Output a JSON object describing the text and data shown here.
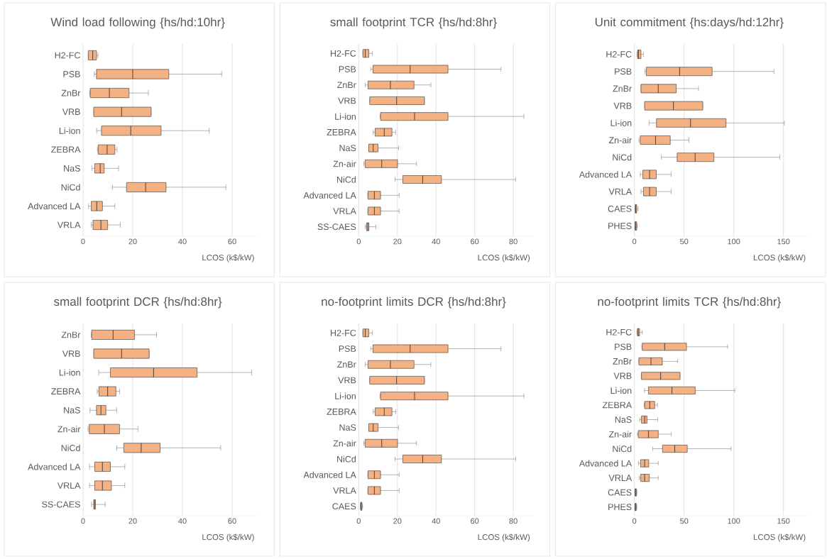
{
  "chart_data": [
    {
      "type": "box",
      "orientation": "horizontal",
      "title": "Wind load following {hs/hd:10hr}",
      "xlabel": "LCOS (k$/kW)",
      "color": "#f4b183",
      "grid": "x",
      "xlim": [
        0,
        70
      ],
      "xticks": [
        0,
        20,
        40,
        60
      ],
      "categories": [
        "H2-FC",
        "PSB",
        "ZnBr",
        "VRB",
        "Li-ion",
        "ZEBRA",
        "NaS",
        "NiCd",
        "Advanced LA",
        "VRLA"
      ],
      "boxes": [
        {
          "low": 2.1,
          "q1": 2.1,
          "median": 3.9,
          "q3": 5.4,
          "high": 6.0
        },
        {
          "low": 4.5,
          "q1": 5.4,
          "median": 20,
          "q3": 34.5,
          "high": 55.8
        },
        {
          "low": 2.7,
          "q1": 2.9,
          "median": 10.6,
          "q3": 18.5,
          "high": 26.3
        },
        {
          "low": 4.3,
          "q1": 4.3,
          "median": 15.5,
          "q3": 27.4,
          "high": 27.4
        },
        {
          "low": 5.5,
          "q1": 7.4,
          "median": 19.2,
          "q3": 31.4,
          "high": 50.8
        },
        {
          "low": 5.8,
          "q1": 6.1,
          "median": 9.7,
          "q3": 12.8,
          "high": 13.7
        },
        {
          "low": 3.6,
          "q1": 4.7,
          "median": 6.9,
          "q3": 8.5,
          "high": 14.3
        },
        {
          "low": 11.8,
          "q1": 17.5,
          "median": 25.2,
          "q3": 33.4,
          "high": 57.5
        },
        {
          "low": 2.2,
          "q1": 3.3,
          "median": 5.5,
          "q3": 7.8,
          "high": 12.8
        },
        {
          "low": 3.3,
          "q1": 4.0,
          "median": 7.2,
          "q3": 9.9,
          "high": 15.0
        }
      ]
    },
    {
      "type": "box",
      "orientation": "horizontal",
      "title": "small footprint TCR {hs/hd:8hr}",
      "xlabel": "LCOS (k$/kW)",
      "color": "#f4b183",
      "grid": "x",
      "xlim": [
        0,
        90
      ],
      "xticks": [
        0,
        20,
        40,
        60,
        80
      ],
      "categories": [
        "H2-FC",
        "PSB",
        "ZnBr",
        "VRB",
        "Li-ion",
        "ZEBRA",
        "NaS",
        "Zn-air",
        "NiCd",
        "Advanced LA",
        "VRLA",
        "SS-CAES"
      ],
      "boxes": [
        {
          "low": 2.1,
          "q1": 2.2,
          "median": 3.4,
          "q3": 5.2,
          "high": 7.1
        },
        {
          "low": 6.2,
          "q1": 7.4,
          "median": 26.6,
          "q3": 46.2,
          "high": 73.6
        },
        {
          "low": 3.4,
          "q1": 4.8,
          "median": 16.4,
          "q3": 28.6,
          "high": 37.3
        },
        {
          "low": 5.7,
          "q1": 5.7,
          "median": 19.6,
          "q3": 34.0,
          "high": 34.0
        },
        {
          "low": 11.1,
          "q1": 11.3,
          "median": 28.9,
          "q3": 46.2,
          "high": 85.5
        },
        {
          "low": 7.5,
          "q1": 8.5,
          "median": 13.2,
          "q3": 17.2,
          "high": 19.1
        },
        {
          "low": 5.2,
          "q1": 5.2,
          "median": 7.5,
          "q3": 10.0,
          "high": 20.6
        },
        {
          "low": 2.6,
          "q1": 3.3,
          "median": 11.9,
          "q3": 20.1,
          "high": 29.9
        },
        {
          "low": 18.8,
          "q1": 22.8,
          "median": 33.1,
          "q3": 42.8,
          "high": 81.2
        },
        {
          "low": 4.7,
          "q1": 4.8,
          "median": 8.1,
          "q3": 11.3,
          "high": 20.9
        },
        {
          "low": 4.7,
          "q1": 4.8,
          "median": 8.1,
          "q3": 11.3,
          "high": 20.9
        },
        {
          "low": 3.4,
          "q1": 4.1,
          "median": 4.7,
          "q3": 5.3,
          "high": 8.9
        }
      ]
    },
    {
      "type": "box",
      "orientation": "horizontal",
      "title": "Unit commitment {hs:days/hd:12hr}",
      "xlabel": "LCOS (k$/kW)",
      "color": "#f4b183",
      "grid": "x",
      "xlim": [
        0,
        175
      ],
      "xticks": [
        0,
        50,
        100,
        150
      ],
      "categories": [
        "H2-FC",
        "PSB",
        "ZnBr",
        "VRB",
        "Li-ion",
        "Zn-air",
        "NiCd",
        "Advanced LA",
        "VRLA",
        "CAES",
        "PHES"
      ],
      "boxes": [
        {
          "low": 2.7,
          "q1": 3.2,
          "median": 4.1,
          "q3": 6.6,
          "high": 9.1
        },
        {
          "low": 10.5,
          "q1": 11.9,
          "median": 45.5,
          "q3": 78.2,
          "high": 140.4
        },
        {
          "low": 6.6,
          "q1": 6.6,
          "median": 24.0,
          "q3": 42.1,
          "high": 64.5
        },
        {
          "low": 10.3,
          "q1": 10.3,
          "median": 39.3,
          "q3": 68.8,
          "high": 68.8
        },
        {
          "low": 14.9,
          "q1": 22.2,
          "median": 56.5,
          "q3": 92.2,
          "high": 150.9
        },
        {
          "low": 4.6,
          "q1": 5.9,
          "median": 21.3,
          "q3": 36.1,
          "high": 54.9
        },
        {
          "low": 27.2,
          "q1": 43.0,
          "median": 61.1,
          "q3": 80.0,
          "high": 146.4
        },
        {
          "low": 5.9,
          "q1": 8.5,
          "median": 15.3,
          "q3": 22.0,
          "high": 37.0
        },
        {
          "low": 6.6,
          "q1": 9.1,
          "median": 15.3,
          "q3": 22.0,
          "high": 37.0
        },
        {
          "low": 0.7,
          "q1": 0.9,
          "median": 1.4,
          "q3": 2.3,
          "high": 3.7
        },
        {
          "low": 0.7,
          "q1": 0.7,
          "median": 1.1,
          "q3": 2.3,
          "high": 2.7
        }
      ]
    },
    {
      "type": "box",
      "orientation": "horizontal",
      "title": "small footprint DCR {hs/hd:8hr}",
      "xlabel": "LCOS (k$/kW)",
      "color": "#f4b183",
      "grid": "x",
      "xlim": [
        0,
        70
      ],
      "xticks": [
        0,
        20,
        40,
        60
      ],
      "categories": [
        "ZnBr",
        "VRB",
        "Li-ion",
        "ZEBRA",
        "NaS",
        "Zn-air",
        "NiCd",
        "Advanced LA",
        "VRLA",
        "SS-CAES"
      ],
      "boxes": [
        {
          "low": 3.3,
          "q1": 3.5,
          "median": 12.1,
          "q3": 20.7,
          "high": 29.6
        },
        {
          "low": 4.3,
          "q1": 4.3,
          "median": 15.5,
          "q3": 26.6,
          "high": 26.6
        },
        {
          "low": 6.3,
          "q1": 11.0,
          "median": 28.4,
          "q3": 45.9,
          "high": 67.9
        },
        {
          "low": 5.7,
          "q1": 6.4,
          "median": 9.9,
          "q3": 13.2,
          "high": 14.7
        },
        {
          "low": 2.8,
          "q1": 5.4,
          "median": 7.2,
          "q3": 9.2,
          "high": 13.5
        },
        {
          "low": 2.0,
          "q1": 2.5,
          "median": 8.6,
          "q3": 14.7,
          "high": 22.1
        },
        {
          "low": 13.6,
          "q1": 16.4,
          "median": 23.4,
          "q3": 31.0,
          "high": 55.4
        },
        {
          "low": 2.6,
          "q1": 4.7,
          "median": 7.8,
          "q3": 11.0,
          "high": 16.8
        },
        {
          "low": 2.6,
          "q1": 4.7,
          "median": 7.8,
          "q3": 11.4,
          "high": 16.8
        },
        {
          "low": 3.4,
          "q1": 4.3,
          "median": 4.6,
          "q3": 5.0,
          "high": 8.9
        }
      ]
    },
    {
      "type": "box",
      "orientation": "horizontal",
      "title": "no-footprint limits DCR {hs/hd:8hr}",
      "xlabel": "LCOS (k$/kW)",
      "color": "#f4b183",
      "grid": "x",
      "xlim": [
        0,
        90
      ],
      "xticks": [
        0,
        20,
        40,
        60,
        80
      ],
      "categories": [
        "H2-FC",
        "PSB",
        "ZnBr",
        "VRB",
        "Li-ion",
        "ZEBRA",
        "NaS",
        "Zn-air",
        "NiCd",
        "Advanced LA",
        "VRLA",
        "CAES"
      ],
      "boxes": [
        {
          "low": 2.1,
          "q1": 2.2,
          "median": 3.4,
          "q3": 5.2,
          "high": 7.1
        },
        {
          "low": 6.2,
          "q1": 7.4,
          "median": 26.6,
          "q3": 46.2,
          "high": 73.6
        },
        {
          "low": 3.4,
          "q1": 4.8,
          "median": 16.4,
          "q3": 28.6,
          "high": 37.3
        },
        {
          "low": 5.7,
          "q1": 5.7,
          "median": 19.6,
          "q3": 34.0,
          "high": 34.0
        },
        {
          "low": 11.1,
          "q1": 11.3,
          "median": 28.9,
          "q3": 46.2,
          "high": 85.5
        },
        {
          "low": 7.5,
          "q1": 8.5,
          "median": 13.2,
          "q3": 17.2,
          "high": 19.1
        },
        {
          "low": 5.2,
          "q1": 5.2,
          "median": 7.5,
          "q3": 10.0,
          "high": 20.6
        },
        {
          "low": 2.6,
          "q1": 3.3,
          "median": 11.9,
          "q3": 20.1,
          "high": 29.9
        },
        {
          "low": 18.8,
          "q1": 22.8,
          "median": 33.1,
          "q3": 42.8,
          "high": 81.2
        },
        {
          "low": 4.7,
          "q1": 4.8,
          "median": 8.1,
          "q3": 11.3,
          "high": 20.9
        },
        {
          "low": 4.7,
          "q1": 4.8,
          "median": 8.1,
          "q3": 11.3,
          "high": 20.9
        },
        {
          "low": 0.9,
          "q1": 1.0,
          "median": 1.2,
          "q3": 1.7,
          "high": 2.0
        }
      ]
    },
    {
      "type": "box",
      "orientation": "horizontal",
      "title": "no-footprint limits TCR {hs/hd:8hr}",
      "xlabel": "LCOS (k$/kW)",
      "color": "#f4b183",
      "grid": "x",
      "xlim": [
        0,
        175
      ],
      "xticks": [
        0,
        50,
        100,
        150
      ],
      "categories": [
        "H2-FC",
        "PSB",
        "ZnBr",
        "VRB",
        "Li-ion",
        "ZEBRA",
        "NaS",
        "Zn-air",
        "NiCd",
        "Advanced LA",
        "VRLA",
        "CAES",
        "PHES"
      ],
      "boxes": [
        {
          "low": 2.6,
          "q1": 3.0,
          "median": 3.9,
          "q3": 5.2,
          "high": 7.9
        },
        {
          "low": 7.5,
          "q1": 7.9,
          "median": 30.5,
          "q3": 52.4,
          "high": 93.8
        },
        {
          "low": 4.5,
          "q1": 4.5,
          "median": 16.7,
          "q3": 28.1,
          "high": 43.6
        },
        {
          "low": 7.1,
          "q1": 7.1,
          "median": 26.4,
          "q3": 45.9,
          "high": 45.9
        },
        {
          "low": 10.1,
          "q1": 14.2,
          "median": 37.8,
          "q3": 61.2,
          "high": 101.1
        },
        {
          "low": 9.9,
          "q1": 10.3,
          "median": 15.5,
          "q3": 20.4,
          "high": 23.2
        },
        {
          "low": 5.4,
          "q1": 7.1,
          "median": 10.3,
          "q3": 12.7,
          "high": 23.4
        },
        {
          "low": 3.0,
          "q1": 3.9,
          "median": 14.2,
          "q3": 24.0,
          "high": 37.1
        },
        {
          "low": 18.5,
          "q1": 28.3,
          "median": 40.6,
          "q3": 53.2,
          "high": 97.2
        },
        {
          "low": 4.1,
          "q1": 6.2,
          "median": 10.3,
          "q3": 14.4,
          "high": 24.0
        },
        {
          "low": 4.9,
          "q1": 6.4,
          "median": 10.3,
          "q3": 15.0,
          "high": 24.0
        },
        {
          "low": 0.6,
          "q1": 0.6,
          "median": 1.1,
          "q3": 2.1,
          "high": 2.6
        },
        {
          "low": 0.6,
          "q1": 0.6,
          "median": 1.1,
          "q3": 1.9,
          "high": 2.4
        }
      ]
    }
  ]
}
